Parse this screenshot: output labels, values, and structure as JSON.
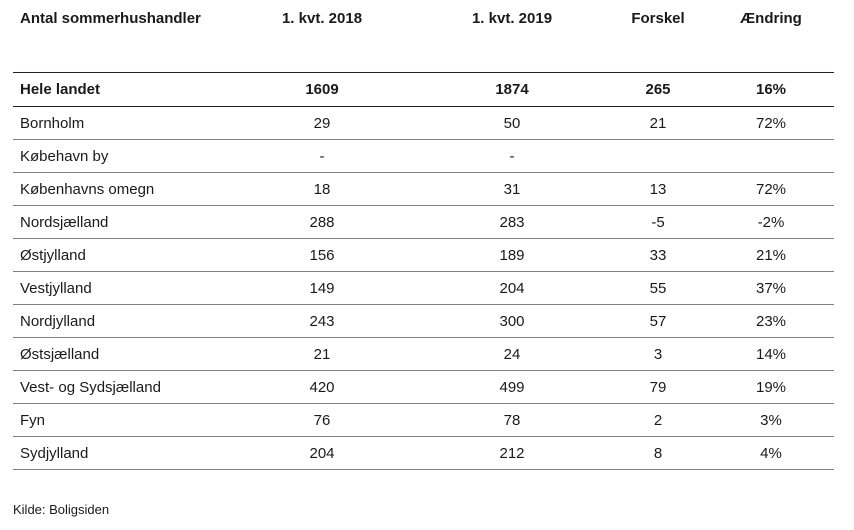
{
  "table": {
    "headers": {
      "region": "Antal sommerhushandler",
      "q1_2018": "1. kvt. 2018",
      "q1_2019": "1. kvt. 2019",
      "diff": "Forskel",
      "change": "Ændring"
    },
    "total": {
      "region": "Hele landet",
      "q1_2018": "1609",
      "q1_2019": "1874",
      "diff": "265",
      "change": "16%"
    },
    "rows": [
      {
        "region": "Bornholm",
        "q1_2018": "29",
        "q1_2019": "50",
        "diff": "21",
        "change": "72%"
      },
      {
        "region": "Købehavn by",
        "q1_2018": "-",
        "q1_2019": "-",
        "diff": "",
        "change": ""
      },
      {
        "region": "Københavns omegn",
        "q1_2018": "18",
        "q1_2019": "31",
        "diff": "13",
        "change": "72%"
      },
      {
        "region": "Nordsjælland",
        "q1_2018": "288",
        "q1_2019": "283",
        "diff": "-5",
        "change": "-2%"
      },
      {
        "region": "Østjylland",
        "q1_2018": "156",
        "q1_2019": "189",
        "diff": "33",
        "change": "21%"
      },
      {
        "region": "Vestjylland",
        "q1_2018": "149",
        "q1_2019": "204",
        "diff": "55",
        "change": "37%"
      },
      {
        "region": "Nordjylland",
        "q1_2018": "243",
        "q1_2019": "300",
        "diff": "57",
        "change": "23%"
      },
      {
        "region": "Østsjælland",
        "q1_2018": "21",
        "q1_2019": "24",
        "diff": "3",
        "change": "14%"
      },
      {
        "region": "Vest- og Sydsjælland",
        "q1_2018": "420",
        "q1_2019": "499",
        "diff": "79",
        "change": "19%"
      },
      {
        "region": "Fyn",
        "q1_2018": "76",
        "q1_2019": "78",
        "diff": "2",
        "change": "3%"
      },
      {
        "region": "Sydjylland",
        "q1_2018": "204",
        "q1_2019": "212",
        "diff": "8",
        "change": "4%"
      }
    ]
  },
  "source": "Kilde: Boligsiden"
}
